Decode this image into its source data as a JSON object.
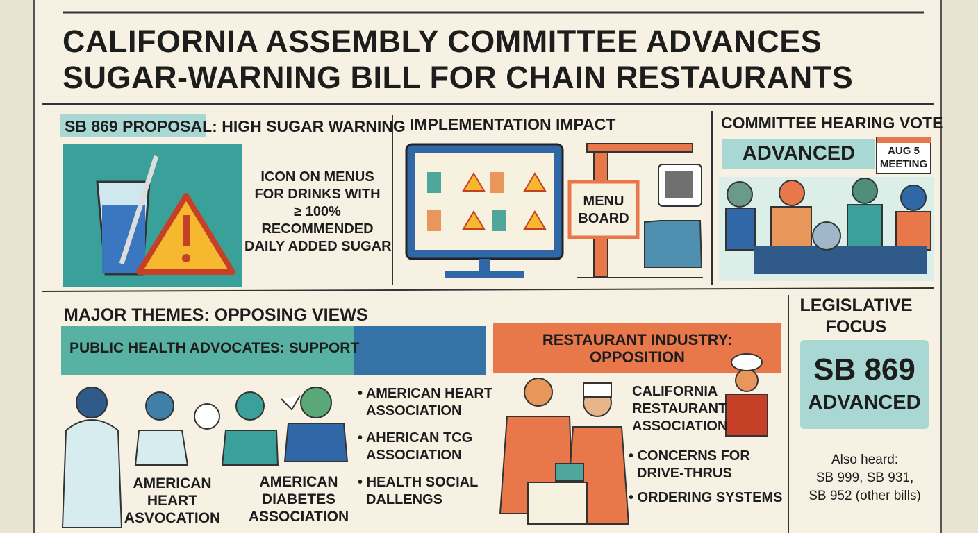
{
  "title": [
    "CALIFORNIA ASSEMBLY COMMITTEE ADVANCES",
    "SUGAR-WARNING BILL FOR CHAIN RESTAURANTS"
  ],
  "proposal": {
    "label": "SB 869 PROPOSAL:",
    "heading": "HIGH SUGAR WARNING",
    "text": [
      "ICON ON MENUS",
      "FOR DRINKS WITH",
      "≥ 100%",
      "RECOMMENDED",
      "DAILY ADDED SUGAR"
    ]
  },
  "impact": {
    "heading": "IMPLEMENTATION IMPACT",
    "sign": [
      "MENU",
      "BOARD"
    ]
  },
  "vote": {
    "heading": "COMMITTEE HEARING VOTE",
    "status": "ADVANCED",
    "date": [
      "AUG 5",
      "MEETING"
    ]
  },
  "themes": {
    "heading": "MAJOR THEMES: OPPOSING VIEWS",
    "support": {
      "heading": "PUBLIC HEALTH ADVOCATES: SUPPORT",
      "figures": [
        [
          "AMERICAN",
          "HEART",
          "ASVOCATION"
        ],
        [
          "AMERICAN",
          "DIABETES",
          "ASSOCIATION"
        ]
      ],
      "list": [
        [
          "AMERICAN HEART",
          "ASSOCIATION"
        ],
        [
          "AHERICAN TCG",
          "ASSOCIATION"
        ],
        [
          "HEALTH SOCIAL",
          "DALLENGS"
        ]
      ]
    },
    "opposition": {
      "heading": [
        "RESTAURANT INDUSTRY:",
        "OPPOSITION"
      ],
      "group": [
        "CALIFORNIA",
        "RESTAURANT",
        "ASSOCIATION"
      ],
      "list": [
        [
          "CONCERNS FOR",
          "DRIVE-THRUS"
        ],
        [
          "ORDERING SYSTEMS"
        ]
      ]
    }
  },
  "focus": {
    "heading": [
      "LEGISLATIVE",
      "FOCUS"
    ],
    "badge": [
      "SB 869",
      "ADVANCED"
    ],
    "note": [
      "Also heard:",
      "SB 999, SB 931,",
      "SB 952 (other bills)"
    ]
  }
}
